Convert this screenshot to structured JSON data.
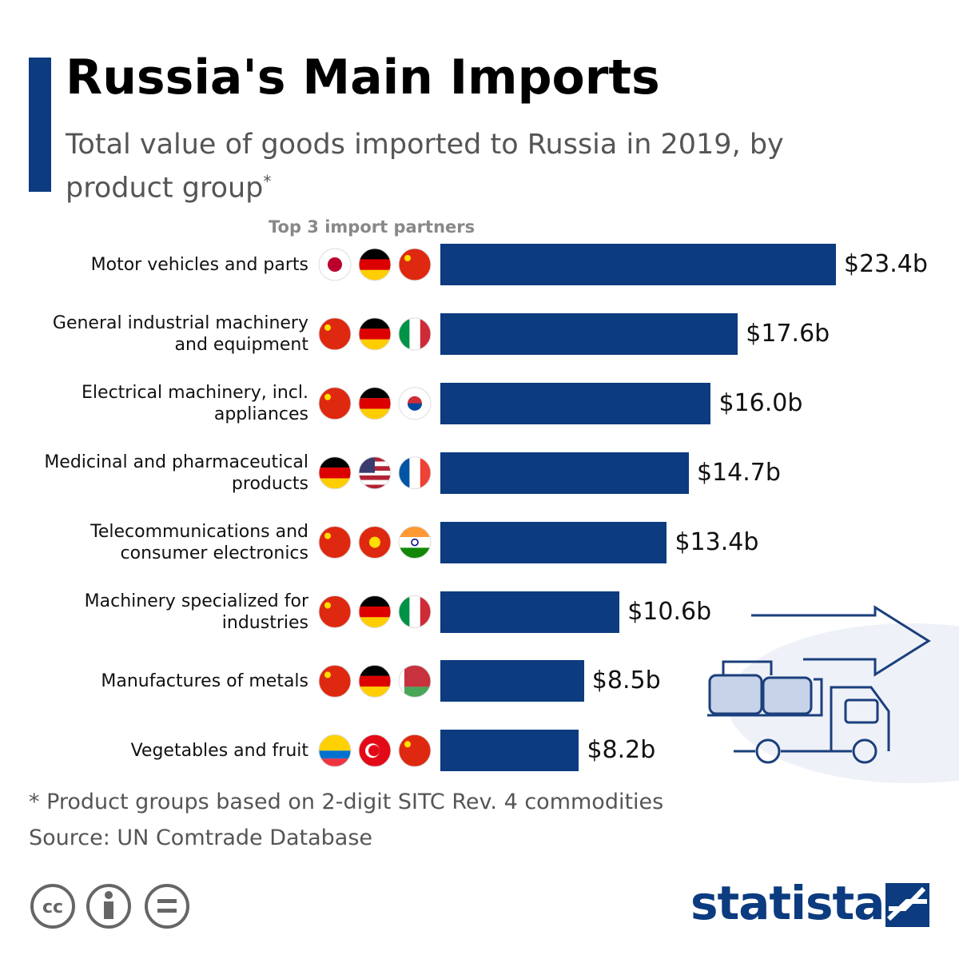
{
  "chart_data": {
    "type": "bar",
    "orientation": "horizontal",
    "title": "Russia's Main Imports",
    "subtitle": "Total value of goods imported to Russia in 2019, by product group",
    "subtitle_mark": "*",
    "partners_label": "Top 3 import partners",
    "categories": [
      "Motor vehicles and parts",
      "General industrial machinery and equipment",
      "Electrical machinery, incl. appliances",
      "Medicinal and pharmaceutical products",
      "Telecommunications and consumer electronics",
      "Machinery specialized for industries",
      "Manufactures of metals",
      "Vegetables and fruit"
    ],
    "values": [
      23.4,
      17.6,
      16.0,
      14.7,
      13.4,
      10.6,
      8.5,
      8.2
    ],
    "value_labels": [
      "$23.4b",
      "$17.6b",
      "$16.0b",
      "$14.7b",
      "$13.4b",
      "$10.6b",
      "$8.5b",
      "$8.2b"
    ],
    "color": "#0c3b7f",
    "footnote": "* Product groups based on 2-digit SITC Rev. 4 commodities",
    "source": "Source: UN Comtrade Database",
    "brand": "statista"
  }
}
